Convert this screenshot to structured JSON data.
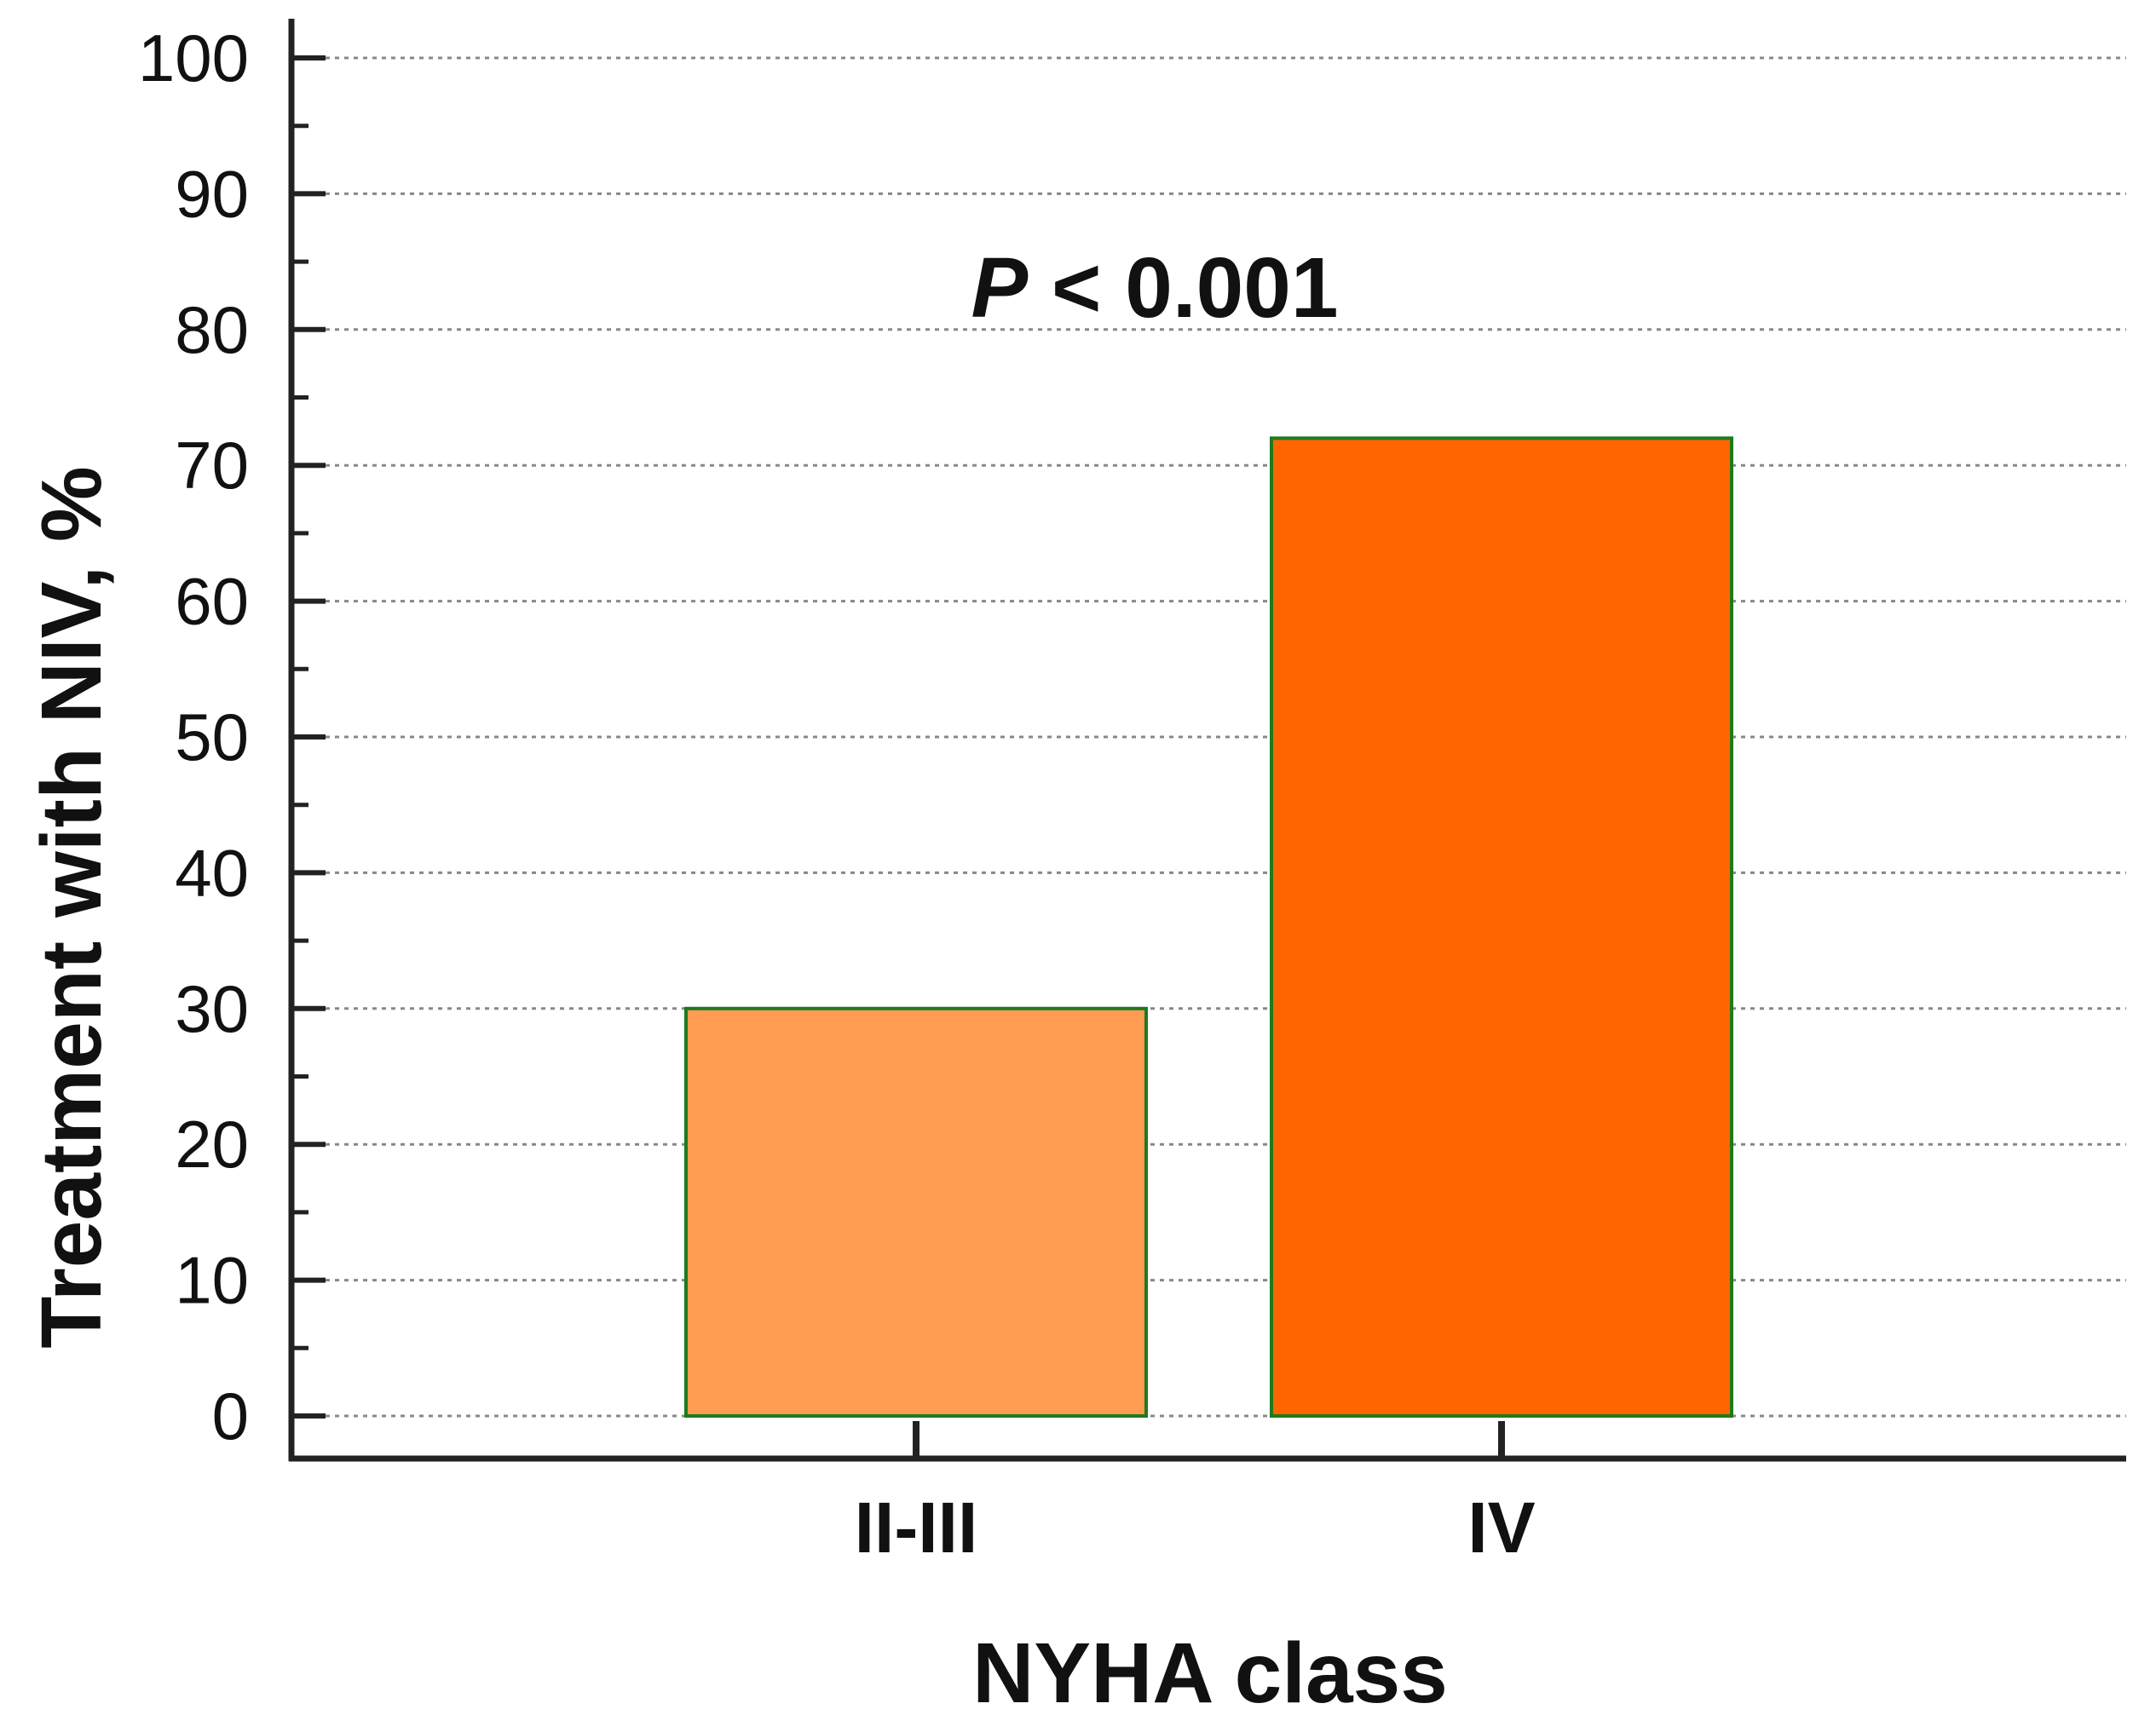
{
  "chart_data": {
    "type": "bar",
    "categories": [
      "II-III",
      "IV"
    ],
    "values": [
      30,
      72
    ],
    "xlabel": "NYHA class",
    "ylabel": "Treatment with NIV, %",
    "ylim": [
      0,
      100
    ],
    "yticks": [
      0,
      10,
      20,
      30,
      40,
      50,
      60,
      70,
      80,
      90,
      100
    ],
    "grid": true,
    "annotation": {
      "p_symbol": "P",
      "p_rest": " < 0.001"
    },
    "colors": {
      "bars": [
        "#FF9C52",
        "#FF6600"
      ],
      "bar_outline": "#1F7A1F",
      "axis": "#222222"
    }
  }
}
